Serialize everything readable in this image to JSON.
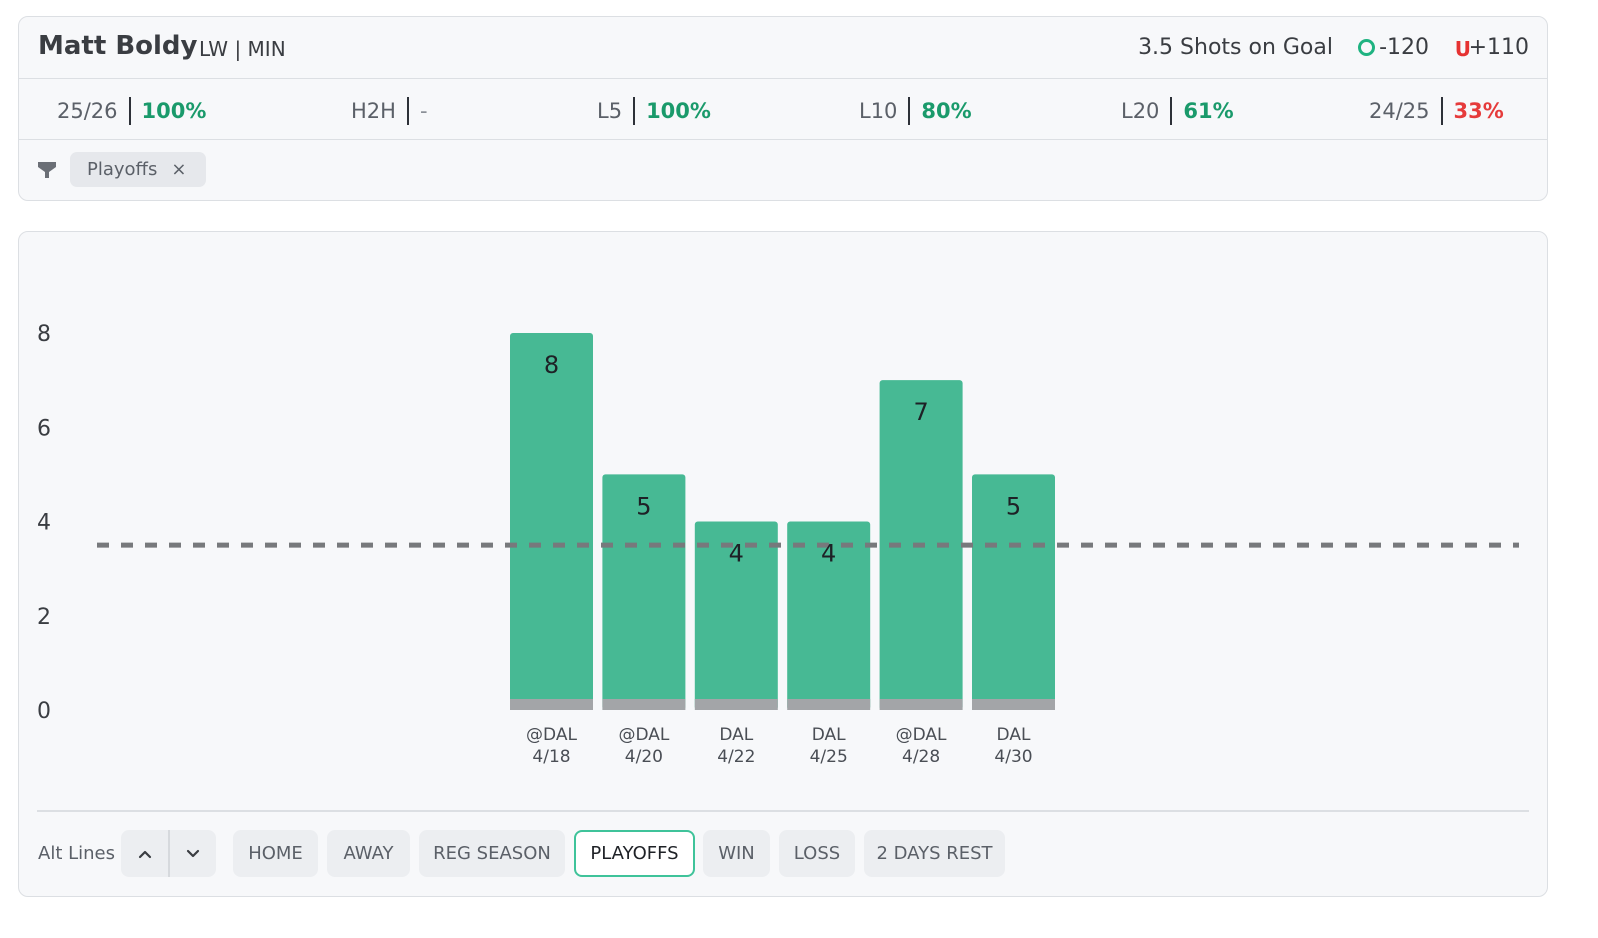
{
  "header": {
    "player_name": "Matt Boldy",
    "player_meta": "LW | MIN",
    "market": "3.5 Shots on Goal",
    "over_odds": "-120",
    "under_icon": "U",
    "under_odds": "+110",
    "colors": {
      "over": "#1fb381",
      "under": "#e63232"
    }
  },
  "stats": [
    {
      "label": "25/26",
      "value": "100%",
      "tone": "green"
    },
    {
      "label": "H2H",
      "value": "-",
      "tone": "muted"
    },
    {
      "label": "L5",
      "value": "100%",
      "tone": "green"
    },
    {
      "label": "L10",
      "value": "80%",
      "tone": "green"
    },
    {
      "label": "L20",
      "value": "61%",
      "tone": "green"
    },
    {
      "label": "24/25",
      "value": "33%",
      "tone": "red"
    }
  ],
  "filters": {
    "icon": "funnel-icon",
    "chips": [
      {
        "label": "Playoffs",
        "remove_icon": "×"
      }
    ]
  },
  "chart_data": {
    "type": "bar",
    "categories": [
      "@DAL 4/18",
      "@DAL 4/20",
      "DAL 4/22",
      "DAL 4/25",
      "@DAL 4/28",
      "DAL 4/30"
    ],
    "opponents": [
      "@DAL",
      "@DAL",
      "DAL",
      "DAL",
      "@DAL",
      "DAL"
    ],
    "dates": [
      "4/18",
      "4/20",
      "4/22",
      "4/25",
      "4/28",
      "4/30"
    ],
    "values": [
      8,
      5,
      4,
      4,
      7,
      5
    ],
    "yticks": [
      0,
      2,
      4,
      6,
      8
    ],
    "ylim": [
      0,
      8
    ],
    "line": 3.5,
    "bar_color": "#47b994",
    "base_color": "#a3a5a8",
    "line_color": "#77797c",
    "grid": false
  },
  "controls": {
    "alt_lines_label": "Alt Lines",
    "up_icon": "chevron-up-icon",
    "down_icon": "chevron-down-icon",
    "buttons": [
      {
        "label": "HOME",
        "active": false
      },
      {
        "label": "AWAY",
        "active": false
      },
      {
        "label": "REG SEASON",
        "active": false
      },
      {
        "label": "PLAYOFFS",
        "active": true
      },
      {
        "label": "WIN",
        "active": false
      },
      {
        "label": "LOSS",
        "active": false
      },
      {
        "label": "2 DAYS REST",
        "active": false
      }
    ]
  }
}
